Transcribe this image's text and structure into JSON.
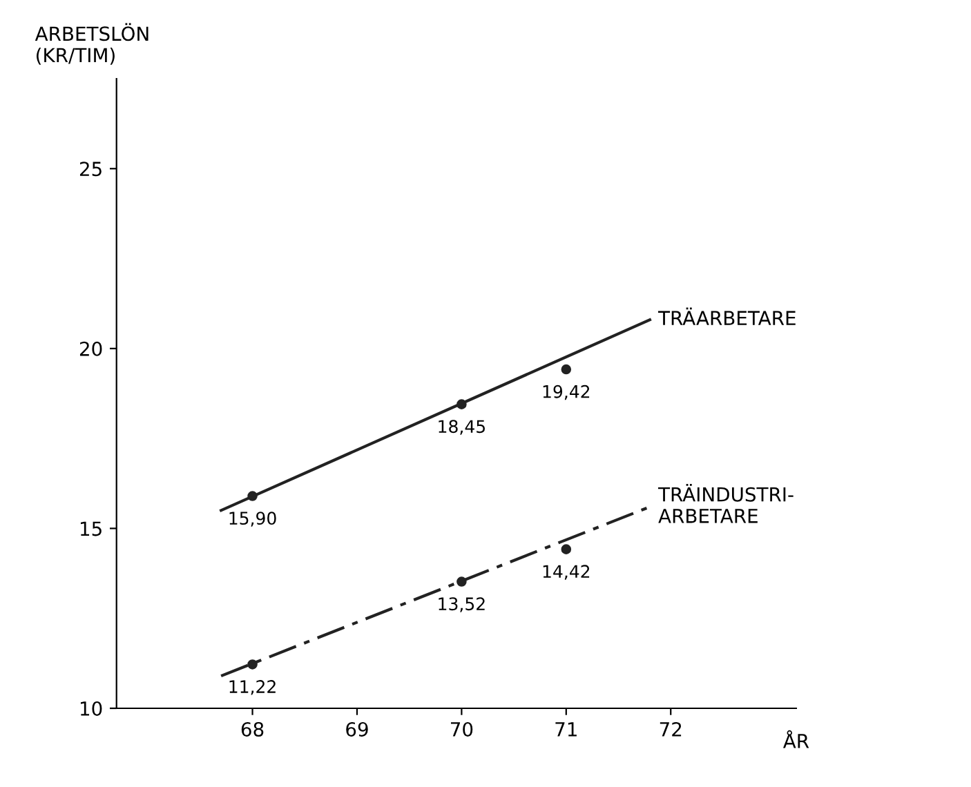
{
  "chart_data": {
    "type": "line",
    "ylabel": "ARBETSLÖN\n(KR/TIM)",
    "xlabel": "ÅR",
    "xlim": [
      66.7,
      73.2
    ],
    "ylim": [
      10,
      27.5
    ],
    "xticks": [
      68,
      69,
      70,
      71,
      72
    ],
    "yticks": [
      10,
      15,
      20,
      25
    ],
    "grid": false,
    "series": [
      {
        "name": "TRÄARBETARE",
        "color": "#222222",
        "line_style": "solid",
        "marker": "none",
        "x": [
          67.7,
          71.8
        ],
        "values": [
          15.5,
          20.8
        ]
      },
      {
        "type": "scatter",
        "color": "#222222",
        "marker": "circle",
        "x": [
          68,
          70,
          71
        ],
        "values": [
          15.9,
          18.45,
          19.42
        ],
        "value_labels": [
          "15,90",
          "18,45",
          "19,42"
        ]
      },
      {
        "name": "TRÄINDUSTRI-\nARBETARE",
        "color": "#222222",
        "line_style": "dashdot",
        "marker": "none",
        "x": [
          67.7,
          71.8
        ],
        "values": [
          10.9,
          15.6
        ]
      },
      {
        "type": "scatter",
        "color": "#222222",
        "marker": "circle",
        "x": [
          68,
          70,
          71
        ],
        "values": [
          11.22,
          13.52,
          14.42
        ],
        "value_labels": [
          "11,22",
          "13,52",
          "14,42"
        ]
      }
    ]
  }
}
